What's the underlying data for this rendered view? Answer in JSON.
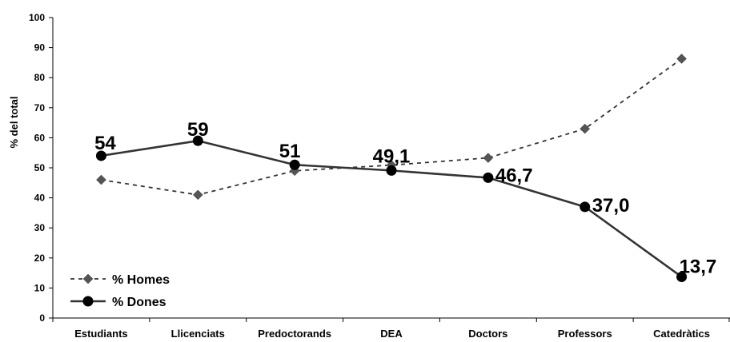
{
  "chart_data": {
    "type": "line",
    "title": "",
    "xlabel": "",
    "ylabel": "% del total",
    "ylim": [
      0,
      100
    ],
    "yticks": [
      0,
      10,
      20,
      30,
      40,
      50,
      60,
      70,
      80,
      90,
      100
    ],
    "grid": false,
    "legend_position": "bottom-left",
    "categories": [
      "Estudiants",
      "Llicenciats",
      "Predoctorands",
      "DEA",
      "Doctors",
      "Professors",
      "Catedràtics"
    ],
    "series": [
      {
        "name": "% Homes",
        "values": [
          46,
          41,
          49,
          50.9,
          53.3,
          63,
          86.3
        ],
        "line_style": "dashed",
        "marker": "diamond",
        "color": "#333333",
        "marker_color": "#555555",
        "data_labels": []
      },
      {
        "name": "% Dones",
        "values": [
          54,
          59,
          51,
          49.1,
          46.7,
          37.0,
          13.7
        ],
        "line_style": "solid",
        "marker": "circle",
        "color": "#333333",
        "marker_color": "#000000",
        "data_labels": [
          "54",
          "59",
          "51",
          "49,1",
          "46,7",
          "37,0",
          "13,7"
        ]
      }
    ]
  }
}
